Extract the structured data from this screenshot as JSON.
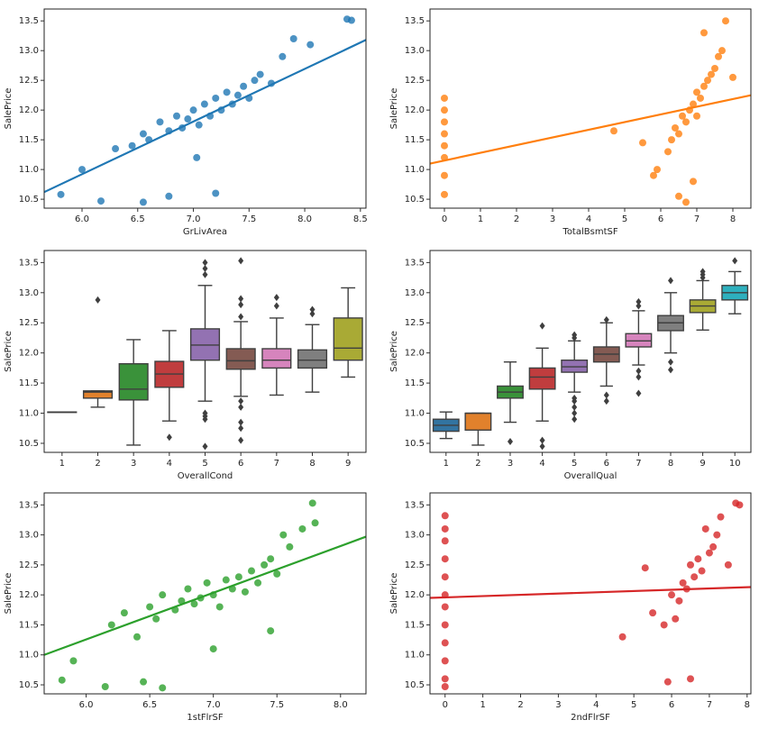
{
  "chart_data": [
    {
      "type": "scatter",
      "x_label": "GrLivArea",
      "y_label": "SalePrice",
      "color": "#1f77b4",
      "xlim": [
        5.66,
        8.55
      ],
      "ylim": [
        10.35,
        13.7
      ],
      "xticks": [
        {
          "value": 6.0,
          "label": "6.0"
        },
        6.5,
        {
          "value": 7.0,
          "label": "7.0"
        },
        7.5,
        {
          "value": 8.0,
          "label": "8.0"
        },
        8.5
      ],
      "yticks": [
        10.5,
        {
          "value": 11.0,
          "label": "11.0"
        },
        11.5,
        {
          "value": 12.0,
          "label": "12.0"
        },
        12.5,
        {
          "value": 13.0,
          "label": "13.0"
        },
        13.5
      ],
      "x": [
        5.81,
        6.0,
        6.17,
        6.3,
        6.45,
        6.55,
        6.6,
        6.7,
        6.78,
        6.85,
        6.9,
        6.95,
        7.0,
        7.05,
        7.1,
        7.15,
        7.2,
        7.25,
        7.3,
        7.35,
        7.4,
        7.45,
        7.5,
        7.55,
        7.6,
        7.7,
        7.8,
        7.9,
        8.05,
        8.38,
        8.42,
        6.78,
        7.2,
        7.03,
        6.55
      ],
      "y": [
        10.58,
        11.0,
        10.47,
        11.35,
        11.4,
        11.6,
        11.5,
        11.8,
        11.65,
        11.9,
        11.7,
        11.85,
        12.0,
        11.75,
        12.1,
        11.9,
        12.2,
        12.0,
        12.3,
        12.1,
        12.25,
        12.4,
        12.2,
        12.5,
        12.6,
        12.45,
        12.9,
        13.2,
        13.1,
        13.53,
        13.51,
        10.55,
        10.6,
        11.2,
        10.45
      ],
      "regression": {
        "x": [
          5.66,
          8.55
        ],
        "y": [
          10.62,
          13.18
        ]
      }
    },
    {
      "type": "scatter",
      "x_label": "TotalBsmtSF",
      "y_label": "SalePrice",
      "color": "#ff7f0e",
      "xlim": [
        -0.4,
        8.5
      ],
      "ylim": [
        10.35,
        13.7
      ],
      "xticks": [
        0,
        1,
        2,
        3,
        4,
        5,
        6,
        7,
        8
      ],
      "yticks": [
        10.5,
        {
          "value": 11.0,
          "label": "11.0"
        },
        11.5,
        {
          "value": 12.0,
          "label": "12.0"
        },
        12.5,
        {
          "value": 13.0,
          "label": "13.0"
        },
        13.5
      ],
      "x": [
        0,
        0,
        0,
        0,
        0,
        0,
        0,
        0,
        4.7,
        5.5,
        5.8,
        5.9,
        6.2,
        6.3,
        6.4,
        6.5,
        6.6,
        6.7,
        6.8,
        6.9,
        7.0,
        7.0,
        7.1,
        7.2,
        7.3,
        7.4,
        7.5,
        7.6,
        7.7,
        7.8,
        8.0,
        6.7,
        6.5,
        6.9,
        7.2
      ],
      "y": [
        10.58,
        10.9,
        11.2,
        11.4,
        11.6,
        11.8,
        12.0,
        12.2,
        11.65,
        11.45,
        10.9,
        11.0,
        11.3,
        11.5,
        11.7,
        11.6,
        11.9,
        11.8,
        12.0,
        12.1,
        11.9,
        12.3,
        12.2,
        12.4,
        12.5,
        12.6,
        12.7,
        12.9,
        13.0,
        13.5,
        12.55,
        10.45,
        10.55,
        10.8,
        13.3
      ],
      "regression": {
        "x": [
          -0.4,
          8.5
        ],
        "y": [
          11.1,
          12.25
        ]
      }
    },
    {
      "type": "box",
      "x_label": "OverallCond",
      "y_label": "SalePrice",
      "ylim": [
        10.35,
        13.7
      ],
      "yticks": [
        10.5,
        {
          "value": 11.0,
          "label": "11.0"
        },
        11.5,
        {
          "value": 12.0,
          "label": "12.0"
        },
        12.5,
        {
          "value": 13.0,
          "label": "13.0"
        },
        13.5
      ],
      "categories": [
        "1",
        "2",
        "3",
        "4",
        "5",
        "6",
        "7",
        "8",
        "9"
      ],
      "colors": [
        "#3274a1",
        "#e1812c",
        "#3a923a",
        "#c03d3e",
        "#9372b2",
        "#845b53",
        "#d684bd",
        "#7f7f7f",
        "#a9aa35"
      ],
      "boxes": [
        [
          11.02,
          11.02,
          11.02,
          11.02,
          11.02
        ],
        [
          11.1,
          11.25,
          11.35,
          11.37,
          11.37
        ],
        [
          10.47,
          11.22,
          11.4,
          11.82,
          12.22
        ],
        [
          10.87,
          11.43,
          11.65,
          11.86,
          12.37
        ],
        [
          11.2,
          11.88,
          12.13,
          12.4,
          13.12
        ],
        [
          11.28,
          11.73,
          11.87,
          12.07,
          12.52
        ],
        [
          11.3,
          11.75,
          11.88,
          12.07,
          12.58
        ],
        [
          11.35,
          11.75,
          11.88,
          12.05,
          12.47
        ],
        [
          11.6,
          11.88,
          12.08,
          12.58,
          13.08
        ]
      ],
      "outliers": [
        [],
        [
          12.88
        ],
        [],
        [
          10.6
        ],
        [
          10.45,
          10.9,
          10.95,
          11.0,
          13.3,
          13.4,
          13.5
        ],
        [
          10.55,
          10.75,
          10.85,
          11.1,
          11.2,
          12.6,
          12.8,
          12.9,
          13.53
        ],
        [
          12.78,
          12.92
        ],
        [
          12.65,
          12.72
        ],
        []
      ]
    },
    {
      "type": "box",
      "x_label": "OverallQual",
      "y_label": "SalePrice",
      "ylim": [
        10.35,
        13.7
      ],
      "yticks": [
        10.5,
        {
          "value": 11.0,
          "label": "11.0"
        },
        11.5,
        {
          "value": 12.0,
          "label": "12.0"
        },
        12.5,
        {
          "value": 13.0,
          "label": "13.0"
        },
        13.5
      ],
      "categories": [
        "1",
        "2",
        "3",
        "4",
        "5",
        "6",
        "7",
        "8",
        "9",
        "10"
      ],
      "colors": [
        "#3274a1",
        "#e1812c",
        "#3a923a",
        "#c03d3e",
        "#9372b2",
        "#845b53",
        "#d684bd",
        "#7f7f7f",
        "#a9aa35",
        "#2eb0be"
      ],
      "boxes": [
        [
          10.58,
          10.7,
          10.8,
          10.9,
          11.02
        ],
        [
          10.47,
          10.72,
          11.0,
          11.0,
          11.0
        ],
        [
          10.85,
          11.25,
          11.35,
          11.45,
          11.85
        ],
        [
          10.87,
          11.4,
          11.6,
          11.75,
          12.08
        ],
        [
          11.35,
          11.68,
          11.77,
          11.88,
          12.2
        ],
        [
          11.45,
          11.85,
          11.98,
          12.1,
          12.5
        ],
        [
          11.8,
          12.1,
          12.2,
          12.32,
          12.7
        ],
        [
          12.0,
          12.37,
          12.5,
          12.62,
          13.0
        ],
        [
          12.38,
          12.67,
          12.78,
          12.88,
          13.2
        ],
        [
          12.65,
          12.88,
          13.0,
          13.12,
          13.35
        ]
      ],
      "outliers": [
        [],
        [],
        [
          10.53
        ],
        [
          10.45,
          10.55,
          12.45
        ],
        [
          10.9,
          11.0,
          11.1,
          11.2,
          11.25,
          12.25,
          12.3
        ],
        [
          11.2,
          11.3,
          12.55
        ],
        [
          11.33,
          11.6,
          11.7,
          12.78,
          12.85
        ],
        [
          11.72,
          11.85,
          13.2
        ],
        [
          13.25,
          13.3,
          13.35
        ],
        [
          13.53
        ]
      ]
    },
    {
      "type": "scatter",
      "x_label": "1stFlrSF",
      "y_label": "SalePrice",
      "color": "#2ca02c",
      "xlim": [
        5.67,
        8.2
      ],
      "ylim": [
        10.35,
        13.7
      ],
      "xticks": [
        {
          "value": 6.0,
          "label": "6.0"
        },
        6.5,
        {
          "value": 7.0,
          "label": "7.0"
        },
        7.5,
        {
          "value": 8.0,
          "label": "8.0"
        }
      ],
      "yticks": [
        10.5,
        {
          "value": 11.0,
          "label": "11.0"
        },
        11.5,
        {
          "value": 12.0,
          "label": "12.0"
        },
        12.5,
        {
          "value": 13.0,
          "label": "13.0"
        },
        13.5
      ],
      "x": [
        5.81,
        5.9,
        6.15,
        6.2,
        6.3,
        6.4,
        6.5,
        6.55,
        6.6,
        6.7,
        6.75,
        6.8,
        6.85,
        6.9,
        6.95,
        7.0,
        7.05,
        7.1,
        7.15,
        7.2,
        7.25,
        7.3,
        7.35,
        7.4,
        7.45,
        7.5,
        7.55,
        7.6,
        7.7,
        7.78,
        7.8,
        6.6,
        7.0,
        6.45,
        7.45
      ],
      "y": [
        10.58,
        10.9,
        10.47,
        11.5,
        11.7,
        11.3,
        11.8,
        11.6,
        12.0,
        11.75,
        11.9,
        12.1,
        11.85,
        11.95,
        12.2,
        12.0,
        11.8,
        12.25,
        12.1,
        12.3,
        12.05,
        12.4,
        12.2,
        12.5,
        12.6,
        12.35,
        13.0,
        12.8,
        13.1,
        13.53,
        13.2,
        10.45,
        11.1,
        10.55,
        11.4
      ],
      "regression": {
        "x": [
          5.67,
          8.2
        ],
        "y": [
          11.0,
          12.97
        ]
      }
    },
    {
      "type": "scatter",
      "x_label": "2ndFlrSF",
      "y_label": "SalePrice",
      "color": "#d62728",
      "xlim": [
        -0.4,
        8.1
      ],
      "ylim": [
        10.35,
        13.7
      ],
      "xticks": [
        0,
        1,
        2,
        3,
        4,
        5,
        6,
        7,
        8
      ],
      "yticks": [
        10.5,
        {
          "value": 11.0,
          "label": "11.0"
        },
        11.5,
        {
          "value": 12.0,
          "label": "12.0"
        },
        12.5,
        {
          "value": 13.0,
          "label": "13.0"
        },
        13.5
      ],
      "x": [
        0,
        0,
        0,
        0,
        0,
        0,
        0,
        0,
        0,
        0,
        0,
        0,
        4.7,
        5.3,
        5.5,
        5.8,
        6.0,
        6.1,
        6.2,
        6.3,
        6.4,
        6.5,
        6.6,
        6.7,
        6.8,
        6.9,
        7.0,
        7.1,
        7.2,
        7.3,
        7.5,
        7.7,
        7.8,
        5.9,
        6.5
      ],
      "y": [
        10.47,
        10.6,
        10.9,
        11.2,
        11.5,
        11.8,
        12.0,
        12.3,
        12.6,
        12.9,
        13.1,
        13.32,
        11.3,
        12.45,
        11.7,
        11.5,
        12.0,
        11.6,
        11.9,
        12.2,
        12.1,
        12.5,
        12.3,
        12.6,
        12.4,
        13.1,
        12.7,
        12.8,
        13.0,
        13.3,
        12.5,
        13.53,
        13.5,
        10.55,
        10.6
      ],
      "regression": {
        "x": [
          -0.4,
          8.1
        ],
        "y": [
          11.95,
          12.13
        ]
      }
    }
  ]
}
